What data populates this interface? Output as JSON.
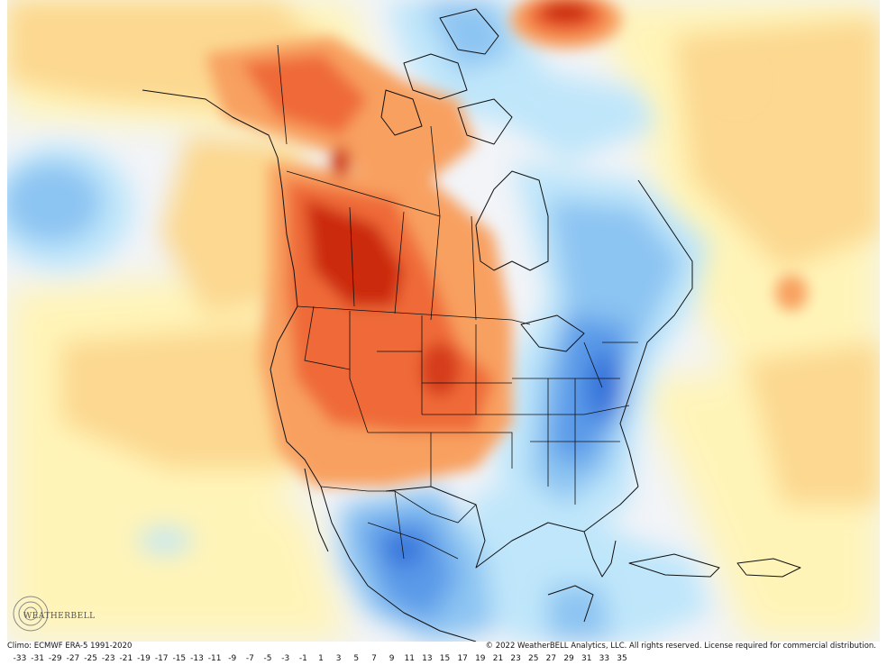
{
  "footer": {
    "climo": "Climo: ECMWF ERA-5 1991-2020",
    "copyright": "© 2022 WeatherBELL Analytics, LLC. All rights reserved. License required for commercial distribution."
  },
  "logo": {
    "text": "WEATHERBELL"
  },
  "colorbar": {
    "labels": [
      "-33",
      "-31",
      "-29",
      "-27",
      "-25",
      "-23",
      "-21",
      "-19",
      "-17",
      "-15",
      "-13",
      "-11",
      "-9",
      "-7",
      "-5",
      "-3",
      "-1",
      "1",
      "3",
      "5",
      "7",
      "9",
      "11",
      "13",
      "15",
      "17",
      "19",
      "21",
      "23",
      "25",
      "27",
      "29",
      "31",
      "33",
      "35"
    ]
  },
  "colors": {
    "cold_deep": "#2a6ad8",
    "cold_mid": "#5a9ae8",
    "cold_light": "#8cc4f2",
    "cold_pale": "#bfe6fa",
    "neutral": "#f2f4f8",
    "warm_pale": "#fff4b8",
    "warm_light": "#fcd890",
    "warm_mid": "#f8a060",
    "warm_strong": "#ef6a38",
    "warm_deep": "#cc2a10"
  }
}
